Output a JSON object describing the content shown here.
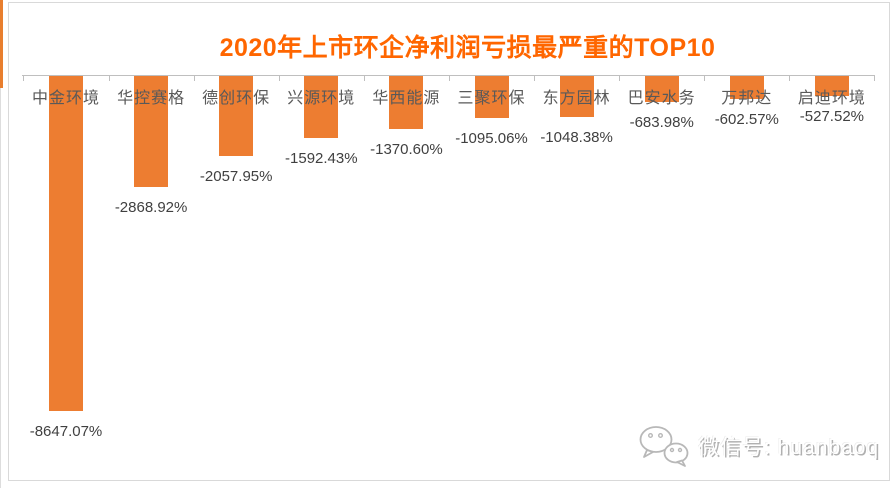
{
  "chart_data": {
    "type": "bar",
    "title": "2020年上市环企净利润亏损最严重的TOP10",
    "categories": [
      "中金环境",
      "华控赛格",
      "德创环保",
      "兴源环境",
      "华西能源",
      "三聚环保",
      "东方园林",
      "巴安水务",
      "万邦达",
      "启迪环境"
    ],
    "values": [
      -8647.07,
      -2868.92,
      -2057.95,
      -1592.43,
      -1370.6,
      -1095.06,
      -1048.38,
      -683.98,
      -602.57,
      -527.52
    ],
    "value_labels": [
      "-8647.07%",
      "-2868.92%",
      "-2057.95%",
      "-1592.43%",
      "-1370.60%",
      "-1095.06%",
      "-1048.38%",
      "-683.98%",
      "-602.57%",
      "-527.52%"
    ],
    "xlabel": "",
    "ylabel": "",
    "ylim": [
      -9000,
      0
    ],
    "grid": false,
    "legend": false,
    "bar_color": "#ED7D31",
    "title_color": "#FF6600",
    "axis_color": "#BFBFBF",
    "category_label_color": "#595959",
    "value_label_color": "#404040"
  },
  "watermark": {
    "label": "微信号: huanbaoq",
    "icon": "wechat-icon"
  }
}
